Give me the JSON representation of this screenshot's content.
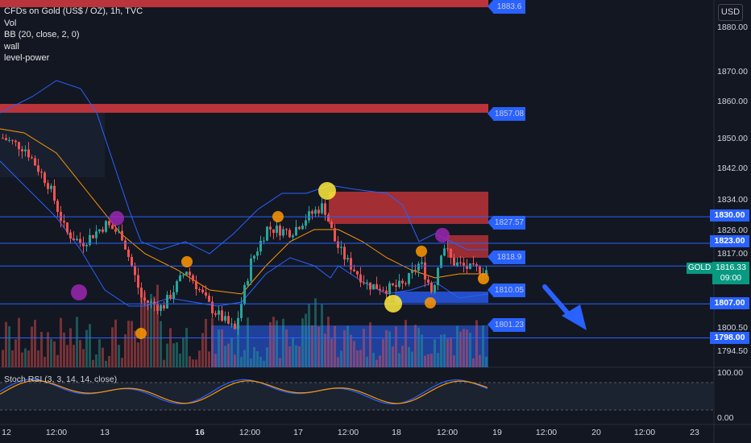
{
  "legend": {
    "title": "CFDs on Gold (US$ / OZ), 1h, TVC",
    "indicators": [
      "Vol",
      "BB (20, close, 2, 0)",
      "wall",
      "level-power"
    ]
  },
  "currency_button": "USD",
  "price_axis": [
    "1880.00",
    "1870.00",
    "1860.00",
    "1850.00",
    "1842.00",
    "1834.00",
    "1826.00",
    "1817.00",
    "1800.50",
    "1794.50"
  ],
  "price_tags": [
    "1830.00",
    "1823.00",
    "1807.00",
    "1798.00"
  ],
  "level_tags": [
    "1883.6",
    "1857.08",
    "1827.57",
    "1818.9",
    "1810.05",
    "1801.23"
  ],
  "symbol": {
    "name": "GOLD",
    "price": "1816.33",
    "countdown": "09:00"
  },
  "time_axis": [
    "12",
    "12:00",
    "13",
    "16",
    "12:00",
    "17",
    "12:00",
    "18",
    "12:00",
    "19",
    "12:00",
    "20",
    "12:00",
    "23"
  ],
  "stoch_rsi": {
    "label": "Stoch RSI (3, 3, 14, 14, close)",
    "axis": [
      "100.00",
      "0.00"
    ]
  },
  "colors": {
    "background": "#131722",
    "up": "#26a69a",
    "down": "#ef5350",
    "blue_level": "#2962ff",
    "bollinger": "#2962ff",
    "ma": "#ff9800",
    "volume_up": "#26a69a",
    "volume_down": "#ef5350"
  }
}
